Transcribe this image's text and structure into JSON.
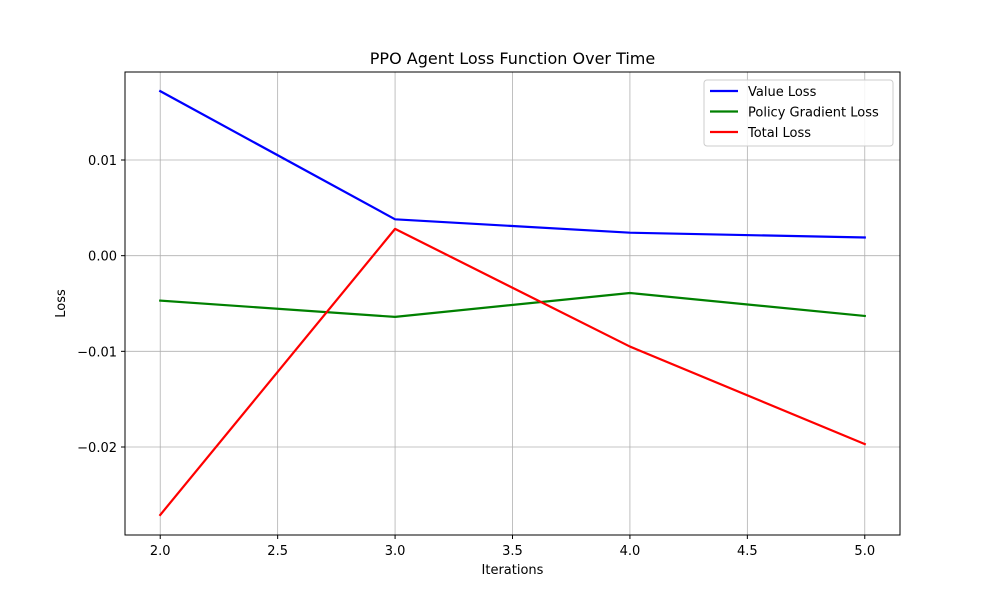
{
  "chart_data": {
    "type": "line",
    "title": "PPO Agent Loss Function Over Time",
    "xlabel": "Iterations",
    "ylabel": "Loss",
    "x": [
      2,
      3,
      4,
      5
    ],
    "xlim": [
      1.85,
      5.15
    ],
    "ylim": [
      -0.0292,
      0.0192
    ],
    "xticks": [
      2.0,
      2.5,
      3.0,
      3.5,
      4.0,
      4.5,
      5.0
    ],
    "xtick_labels": [
      "2.0",
      "2.5",
      "3.0",
      "3.5",
      "4.0",
      "4.5",
      "5.0"
    ],
    "yticks": [
      -0.02,
      -0.01,
      0.0,
      0.01
    ],
    "ytick_labels": [
      "−0.02",
      "−0.01",
      "0.00",
      "0.01"
    ],
    "grid": true,
    "legend_position": "top-right",
    "series": [
      {
        "name": "Value Loss",
        "color": "#0000ff",
        "values": [
          0.0172,
          0.0038,
          0.0024,
          0.0019
        ]
      },
      {
        "name": "Policy Gradient Loss",
        "color": "#008000",
        "values": [
          -0.0047,
          -0.0064,
          -0.0039,
          -0.0063
        ]
      },
      {
        "name": "Total Loss",
        "color": "#ff0000",
        "values": [
          -0.0271,
          0.0028,
          -0.0095,
          -0.0197
        ]
      }
    ]
  }
}
